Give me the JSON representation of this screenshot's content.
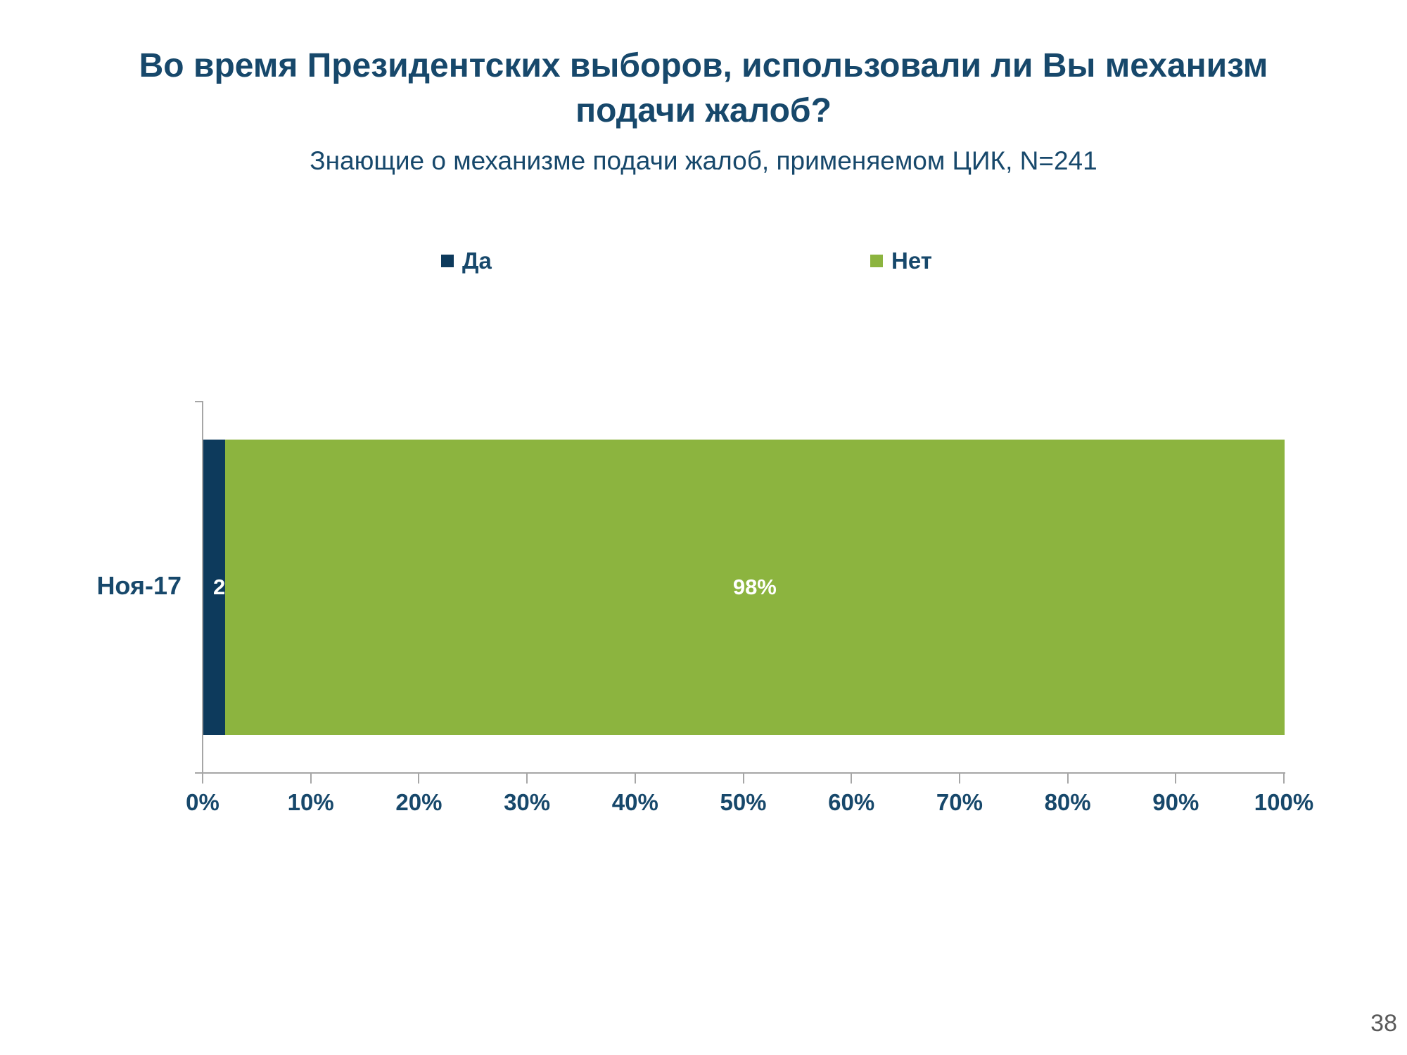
{
  "title": {
    "line1": "Во время Президентских выборов, использовали ли Вы механизм",
    "line2": "подачи жалоб?"
  },
  "subtitle": "Знающие о механизме подачи жалоб, применяемом ЦИК, N=241",
  "legend": [
    {
      "label": "Да",
      "color": "#0D3A5C"
    },
    {
      "label": "Нет",
      "color": "#8CB43F"
    }
  ],
  "slide": {
    "page_number": "38"
  },
  "colors": {
    "title_text": "#17486B",
    "axis_text": "#17486B",
    "axis_line": "#A6A6A6",
    "data_label": "#FFFFFF",
    "page_number": "#595959"
  },
  "chart_data": {
    "type": "bar",
    "orientation": "horizontal",
    "stacked": true,
    "title": "Во время Президентских выборов, использовали ли Вы механизм подачи жалоб?",
    "subtitle": "Знающие о механизме подачи жалоб, применяемом ЦИК, N=241",
    "categories": [
      "Ноя-17"
    ],
    "series": [
      {
        "name": "Да",
        "values": [
          2
        ],
        "color": "#0D3A5C",
        "data_label": "2%"
      },
      {
        "name": "Нет",
        "values": [
          98
        ],
        "color": "#8CB43F",
        "data_label": "98%"
      }
    ],
    "xlim": [
      0,
      100
    ],
    "x_ticks": [
      "0%",
      "10%",
      "20%",
      "30%",
      "40%",
      "50%",
      "60%",
      "70%",
      "80%",
      "90%",
      "100%"
    ],
    "legend_position": "top",
    "grid": false
  }
}
